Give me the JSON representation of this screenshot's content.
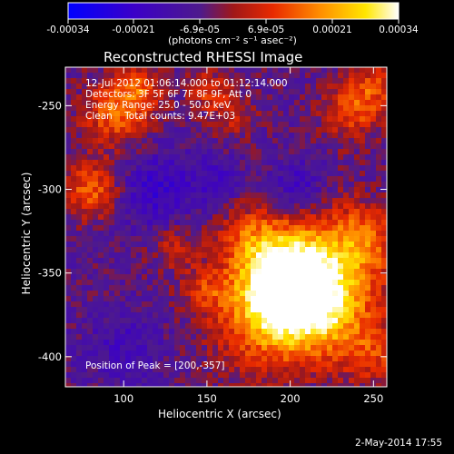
{
  "colorbar": {
    "tick_labels": [
      "-0.00034",
      "-0.00021",
      "-6.9e-05",
      "6.9e-05",
      "0.00021",
      "0.00034"
    ],
    "units": "(photons cm⁻² s⁻¹ asec⁻²)",
    "colormap": [
      "#0000ff",
      "#3b00c8",
      "#4e1a8c",
      "#a01818",
      "#e82a00",
      "#ff8c00",
      "#ffe600",
      "#ffffff"
    ]
  },
  "chart_data": {
    "type": "heatmap",
    "title": "Reconstructed RHESSI Image",
    "xlabel": "Heliocentric X (arcsec)",
    "ylabel": "Heliocentric Y (arcsec)",
    "xlim": [
      65,
      258
    ],
    "ylim": [
      -418,
      -227
    ],
    "xticks": [
      100,
      150,
      200,
      250
    ],
    "yticks": [
      -250,
      -300,
      -350,
      -400
    ],
    "annotations": [
      "12-Jul-2012 01:06:14.000 to 01:12:14.000",
      "Detectors: 3F 5F 6F 7F 8F 9F, Att 0",
      "Energy Range: 25.0 - 50.0 keV",
      "Clean    Total counts: 9.47E+03"
    ],
    "peak_label": "Position of Peak = [200,-357]",
    "peak_position": [
      200,
      -357
    ],
    "total_counts": "9.47E+03",
    "energy_range_keV": [
      25.0,
      50.0
    ]
  },
  "footer": {
    "date": "2-May-2014 17:55"
  }
}
